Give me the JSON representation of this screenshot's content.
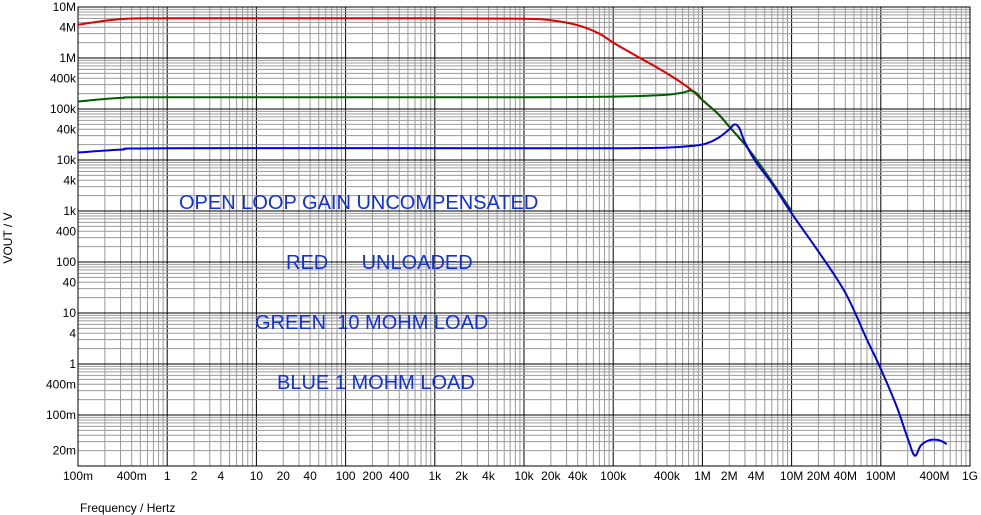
{
  "chart_data": {
    "type": "line",
    "xlabel": "Frequency / Hertz",
    "ylabel": "VOUT / V",
    "xscale": "log",
    "yscale": "log",
    "xlim": [
      0.1,
      1000000000
    ],
    "ylim": [
      0.01,
      10000000
    ],
    "grid": true,
    "x_tick_labels": [
      {
        "value": 0.1,
        "label": "100m"
      },
      {
        "value": 0.4,
        "label": "400m"
      },
      {
        "value": 1,
        "label": "1"
      },
      {
        "value": 2,
        "label": "2"
      },
      {
        "value": 4,
        "label": "4"
      },
      {
        "value": 10,
        "label": "10"
      },
      {
        "value": 20,
        "label": "20"
      },
      {
        "value": 40,
        "label": "40"
      },
      {
        "value": 100,
        "label": "100"
      },
      {
        "value": 200,
        "label": "200"
      },
      {
        "value": 400,
        "label": "400"
      },
      {
        "value": 1000,
        "label": "1k"
      },
      {
        "value": 2000,
        "label": "2k"
      },
      {
        "value": 4000,
        "label": "4k"
      },
      {
        "value": 10000,
        "label": "10k"
      },
      {
        "value": 20000,
        "label": "20k"
      },
      {
        "value": 40000,
        "label": "40k"
      },
      {
        "value": 100000,
        "label": "100k"
      },
      {
        "value": 400000,
        "label": "400k"
      },
      {
        "value": 1000000,
        "label": "1M"
      },
      {
        "value": 2000000,
        "label": "2M"
      },
      {
        "value": 4000000,
        "label": "4M"
      },
      {
        "value": 10000000,
        "label": "10M"
      },
      {
        "value": 20000000,
        "label": "20M"
      },
      {
        "value": 40000000,
        "label": "40M"
      },
      {
        "value": 100000000,
        "label": "100M"
      },
      {
        "value": 400000000,
        "label": "400M"
      },
      {
        "value": 1000000000,
        "label": "1G"
      }
    ],
    "y_tick_labels": [
      {
        "value": 10000000,
        "label": "10M"
      },
      {
        "value": 4000000,
        "label": "4M"
      },
      {
        "value": 1000000,
        "label": "1M"
      },
      {
        "value": 400000,
        "label": "400k"
      },
      {
        "value": 100000,
        "label": "100k"
      },
      {
        "value": 40000,
        "label": "40k"
      },
      {
        "value": 10000,
        "label": "10k"
      },
      {
        "value": 4000,
        "label": "4k"
      },
      {
        "value": 1000,
        "label": "1k"
      },
      {
        "value": 400,
        "label": "400"
      },
      {
        "value": 100,
        "label": "100"
      },
      {
        "value": 40,
        "label": "40"
      },
      {
        "value": 10,
        "label": "10"
      },
      {
        "value": 4,
        "label": "4"
      },
      {
        "value": 1,
        "label": "1"
      },
      {
        "value": 0.4,
        "label": "400m"
      },
      {
        "value": 0.1,
        "label": "100m"
      },
      {
        "value": 0.02,
        "label": "20m"
      }
    ],
    "series": [
      {
        "color": "#e00000",
        "points": [
          [
            0.1,
            4500000
          ],
          [
            0.3,
            5800000
          ],
          [
            1,
            6000000
          ],
          [
            10,
            6000000
          ],
          [
            1000,
            6000000
          ],
          [
            10000,
            5900000
          ],
          [
            20000,
            5500000
          ],
          [
            40000,
            4400000
          ],
          [
            70000,
            3000000
          ],
          [
            100000,
            2000000
          ],
          [
            200000,
            1000000
          ],
          [
            400000,
            500000
          ],
          [
            700000,
            260000
          ],
          [
            1000000,
            150000
          ],
          [
            1500000,
            80000
          ],
          [
            2000000,
            45000
          ],
          [
            3000000,
            20000
          ],
          [
            5000000,
            6000
          ],
          [
            10000000,
            1000
          ]
        ]
      },
      {
        "color": "#006000",
        "points": [
          [
            0.1,
            140000
          ],
          [
            0.3,
            165000
          ],
          [
            1,
            170000
          ],
          [
            10000,
            170000
          ],
          [
            100000,
            175000
          ],
          [
            200000,
            180000
          ],
          [
            400000,
            190000
          ],
          [
            600000,
            210000
          ],
          [
            750000,
            230000
          ],
          [
            900000,
            190000
          ],
          [
            1000000,
            150000
          ],
          [
            1500000,
            80000
          ],
          [
            2000000,
            45000
          ],
          [
            3000000,
            20000
          ],
          [
            5000000,
            6000
          ],
          [
            10000000,
            1000
          ]
        ]
      },
      {
        "color": "#0000e0",
        "points": [
          [
            0.1,
            14000
          ],
          [
            0.3,
            16000
          ],
          [
            1,
            17000
          ],
          [
            10000,
            17000
          ],
          [
            100000,
            17000
          ],
          [
            400000,
            17500
          ],
          [
            800000,
            19000
          ],
          [
            1100000,
            21000
          ],
          [
            1500000,
            27000
          ],
          [
            2000000,
            40000
          ],
          [
            2300000,
            50000
          ],
          [
            2600000,
            42000
          ],
          [
            3000000,
            22000
          ],
          [
            4000000,
            9000
          ],
          [
            6000000,
            3500
          ],
          [
            10000000,
            900
          ],
          [
            20000000,
            160
          ],
          [
            40000000,
            25
          ],
          [
            70000000,
            3
          ],
          [
            100000000,
            0.8
          ],
          [
            150000000,
            0.15
          ],
          [
            200000000,
            0.035
          ],
          [
            240000000,
            0.016
          ],
          [
            280000000,
            0.025
          ],
          [
            350000000,
            0.032
          ],
          [
            450000000,
            0.032
          ],
          [
            550000000,
            0.027
          ]
        ]
      }
    ],
    "annotations": {
      "title": "OPEN LOOP GAIN UNCOMPENSATED",
      "red": "RED      UNLOADED",
      "green": "GREEN  10 MOHM LOAD",
      "blue": "BLUE 1 MOHM LOAD"
    }
  }
}
